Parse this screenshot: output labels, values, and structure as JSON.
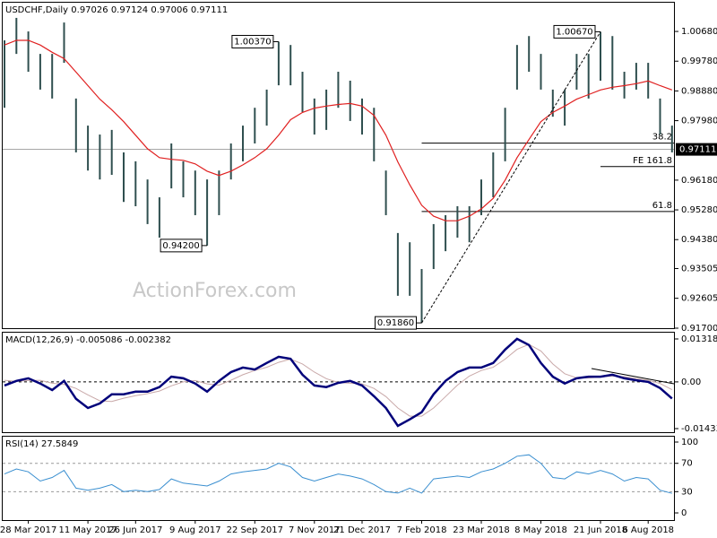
{
  "chart_data": [
    {
      "type": "hilo",
      "title": "USDCHF,Daily  0.97026 0.97124 0.97006 0.97111",
      "watermark": "ActionForex.com",
      "categories": [
        null,
        null,
        "28 Mar 2017",
        null,
        null,
        null,
        null,
        "11 May 2017",
        null,
        null,
        null,
        "26 Jun 2017",
        null,
        null,
        null,
        null,
        "9 Aug 2017",
        null,
        null,
        null,
        null,
        "22 Sep 2017",
        null,
        null,
        null,
        null,
        "7 Nov 2017",
        null,
        null,
        null,
        "21 Dec 2017",
        null,
        null,
        null,
        null,
        "7 Feb 2018",
        null,
        null,
        null,
        null,
        "23 Mar 2018",
        null,
        null,
        null,
        null,
        "8 May 2018",
        null,
        null,
        null,
        null,
        "21 Jun 2018",
        null,
        null,
        null,
        "6 Aug 2018",
        null,
        null
      ],
      "high": [
        1.0041,
        1.0109,
        1.0068,
        1.0,
        1.0,
        1.0095,
        0.9865,
        0.9783,
        0.9756,
        0.977,
        0.9702,
        0.9675,
        0.962,
        0.9566,
        0.9729,
        0.9675,
        0.9647,
        0.962,
        0.9647,
        0.9729,
        0.9783,
        0.9837,
        0.9892,
        1.0037,
        1.0027,
        0.9946,
        0.9865,
        0.9892,
        0.9946,
        0.9919,
        0.9865,
        0.9837,
        0.9647,
        0.9458,
        0.943,
        0.9349,
        0.9485,
        0.9512,
        0.9539,
        0.9539,
        0.962,
        0.9702,
        0.9837,
        1.0027,
        1.0054,
        1.0,
        0.9892,
        0.9892,
        1.0,
        1.0,
        1.0067,
        1.0054,
        0.9946,
        0.9973,
        0.9973,
        0.9865,
        0.9783
      ],
      "low": [
        0.9837,
        1.0,
        0.9946,
        0.9892,
        0.9865,
        0.9973,
        0.9702,
        0.9647,
        0.962,
        0.9634,
        0.9552,
        0.9539,
        0.9485,
        0.9444,
        0.9593,
        0.9566,
        0.9512,
        0.942,
        0.9512,
        0.962,
        0.9675,
        0.9729,
        0.9783,
        0.9905,
        0.9905,
        0.9824,
        0.9756,
        0.977,
        0.9837,
        0.9797,
        0.9756,
        0.9675,
        0.9512,
        0.9268,
        0.9268,
        0.9186,
        0.9349,
        0.9403,
        0.9444,
        0.943,
        0.9512,
        0.9566,
        0.9675,
        0.9892,
        0.9946,
        0.9892,
        0.981,
        0.9783,
        0.9892,
        0.9865,
        0.9919,
        0.9892,
        0.9865,
        0.9892,
        0.9865,
        0.9756,
        0.9702
      ],
      "color": "#2f4f4f",
      "ma": {
        "color": "#e02020",
        "values": [
          1.0027,
          1.0041,
          1.0041,
          1.0027,
          1.0005,
          0.9986,
          0.9945,
          0.9904,
          0.9863,
          0.9831,
          0.9795,
          0.9754,
          0.9713,
          0.9686,
          0.9681,
          0.9678,
          0.9667,
          0.9645,
          0.9632,
          0.9645,
          0.9664,
          0.9686,
          0.9713,
          0.9754,
          0.9801,
          0.9823,
          0.9836,
          0.9842,
          0.9847,
          0.985,
          0.9842,
          0.9814,
          0.9754,
          0.9673,
          0.9604,
          0.9542,
          0.9509,
          0.9495,
          0.9495,
          0.9509,
          0.9531,
          0.9563,
          0.9618,
          0.9686,
          0.9741,
          0.9795,
          0.9823,
          0.9842,
          0.9863,
          0.9877,
          0.9891,
          0.9899,
          0.9904,
          0.991,
          0.9918,
          0.9904,
          0.9891
        ]
      },
      "ylim": [
        0.917,
        1.0155
      ],
      "yticks": [
        {
          "value": 1.0068,
          "label": "1.00680"
        },
        {
          "value": 0.9978,
          "label": "0.99780"
        },
        {
          "value": 0.9888,
          "label": "0.98880"
        },
        {
          "value": 0.9798,
          "label": "0.97980"
        },
        {
          "value": 0.9618,
          "label": "0.96180"
        },
        {
          "value": 0.9528,
          "label": "0.95280"
        },
        {
          "value": 0.9438,
          "label": "0.94380"
        },
        0.93505,
        0.92605,
        {
          "value": 0.917,
          "label": "0.91700"
        }
      ],
      "last": {
        "value": 0.97111,
        "label": "0.97111"
      },
      "callouts": [
        {
          "value": 1.0037,
          "label": "1.00370"
        },
        {
          "value": 0.942,
          "label": "0.94200"
        },
        {
          "value": 0.9186,
          "label": "0.91860"
        },
        {
          "value": 1.0067,
          "label": "1.00670"
        }
      ],
      "levels": [
        {
          "label": "38.2",
          "value": 0.973,
          "from": 0.9186
        },
        {
          "label": "FE 161.8",
          "value": 0.9659,
          "from": 1.0067
        },
        {
          "label": "61.8",
          "value": 0.9523,
          "from": 0.9186
        }
      ],
      "trendline": [
        0.9186,
        1.0067
      ]
    },
    {
      "type": "macd",
      "label": "MACD(12,26,9) -0.005086 -0.002382",
      "ylim": [
        -0.01544,
        0.01511
      ],
      "yticks": [
        0.013184,
        {
          "value": 0,
          "label": "0.00"
        },
        -0.014339
      ],
      "series": [
        {
          "color": "#00007a",
          "values": [
            -0.0011,
            0.0003,
            0.0011,
            -0.0005,
            -0.0025,
            0.0003,
            -0.0052,
            -0.008,
            -0.0066,
            -0.0038,
            -0.0038,
            -0.003,
            -0.003,
            -0.0016,
            0.0016,
            0.0011,
            -0.0005,
            -0.003,
            0.0003,
            0.003,
            0.0044,
            0.0038,
            0.0058,
            0.0077,
            0.0071,
            0.0022,
            -0.0011,
            -0.0016,
            -0.0003,
            0.0003,
            -0.0011,
            -0.0044,
            -0.008,
            -0.0135,
            -0.0115,
            -0.0093,
            -0.0038,
            0.0003,
            0.003,
            0.0044,
            0.0044,
            0.0058,
            0.0099,
            0.0132,
            0.0113,
            0.0058,
            0.0016,
            -0.0005,
            0.0011,
            0.0016,
            0.0016,
            0.0022,
            0.0011,
            0.0005,
            0.0,
            -0.0019,
            -0.005086
          ]
        },
        {
          "color": "#c9a9a9",
          "values": [
            0.0005,
            0.0002,
            0.0004,
            0.0005,
            -0.0004,
            -0.0008,
            -0.002,
            -0.004,
            -0.0058,
            -0.006,
            -0.005,
            -0.0042,
            -0.0036,
            -0.0028,
            -0.0012,
            0.0,
            0.0004,
            -0.0006,
            -0.001,
            0.0005,
            0.0022,
            0.0035,
            0.0045,
            0.006,
            0.007,
            0.0055,
            0.003,
            0.001,
            -0.0002,
            -0.0004,
            -0.0006,
            -0.002,
            -0.0045,
            -0.008,
            -0.0105,
            -0.0105,
            -0.008,
            -0.0045,
            -0.001,
            0.0018,
            0.0035,
            0.0045,
            0.007,
            0.01,
            0.0115,
            0.0095,
            0.0055,
            0.0025,
            0.0012,
            0.0012,
            0.0015,
            0.0018,
            0.0016,
            0.001,
            0.0005,
            -0.0005,
            -0.002382
          ]
        }
      ]
    },
    {
      "type": "rsi",
      "label": "RSI(14) 27.5849",
      "ylim": [
        -10.1,
        107.6
      ],
      "yticks": [
        100,
        70,
        30,
        0
      ],
      "levels": [
        70,
        30
      ],
      "series": [
        {
          "color": "#3a8fd0",
          "values": [
            55,
            62,
            58,
            45,
            50,
            60,
            35,
            32,
            35,
            40,
            30,
            32,
            30,
            33,
            48,
            42,
            40,
            38,
            45,
            55,
            58,
            60,
            62,
            70,
            65,
            50,
            45,
            50,
            55,
            52,
            48,
            40,
            30,
            28,
            35,
            28,
            48,
            50,
            52,
            50,
            58,
            62,
            70,
            80,
            82,
            70,
            50,
            48,
            58,
            55,
            60,
            55,
            45,
            50,
            48,
            32,
            27.5849
          ]
        }
      ]
    }
  ]
}
